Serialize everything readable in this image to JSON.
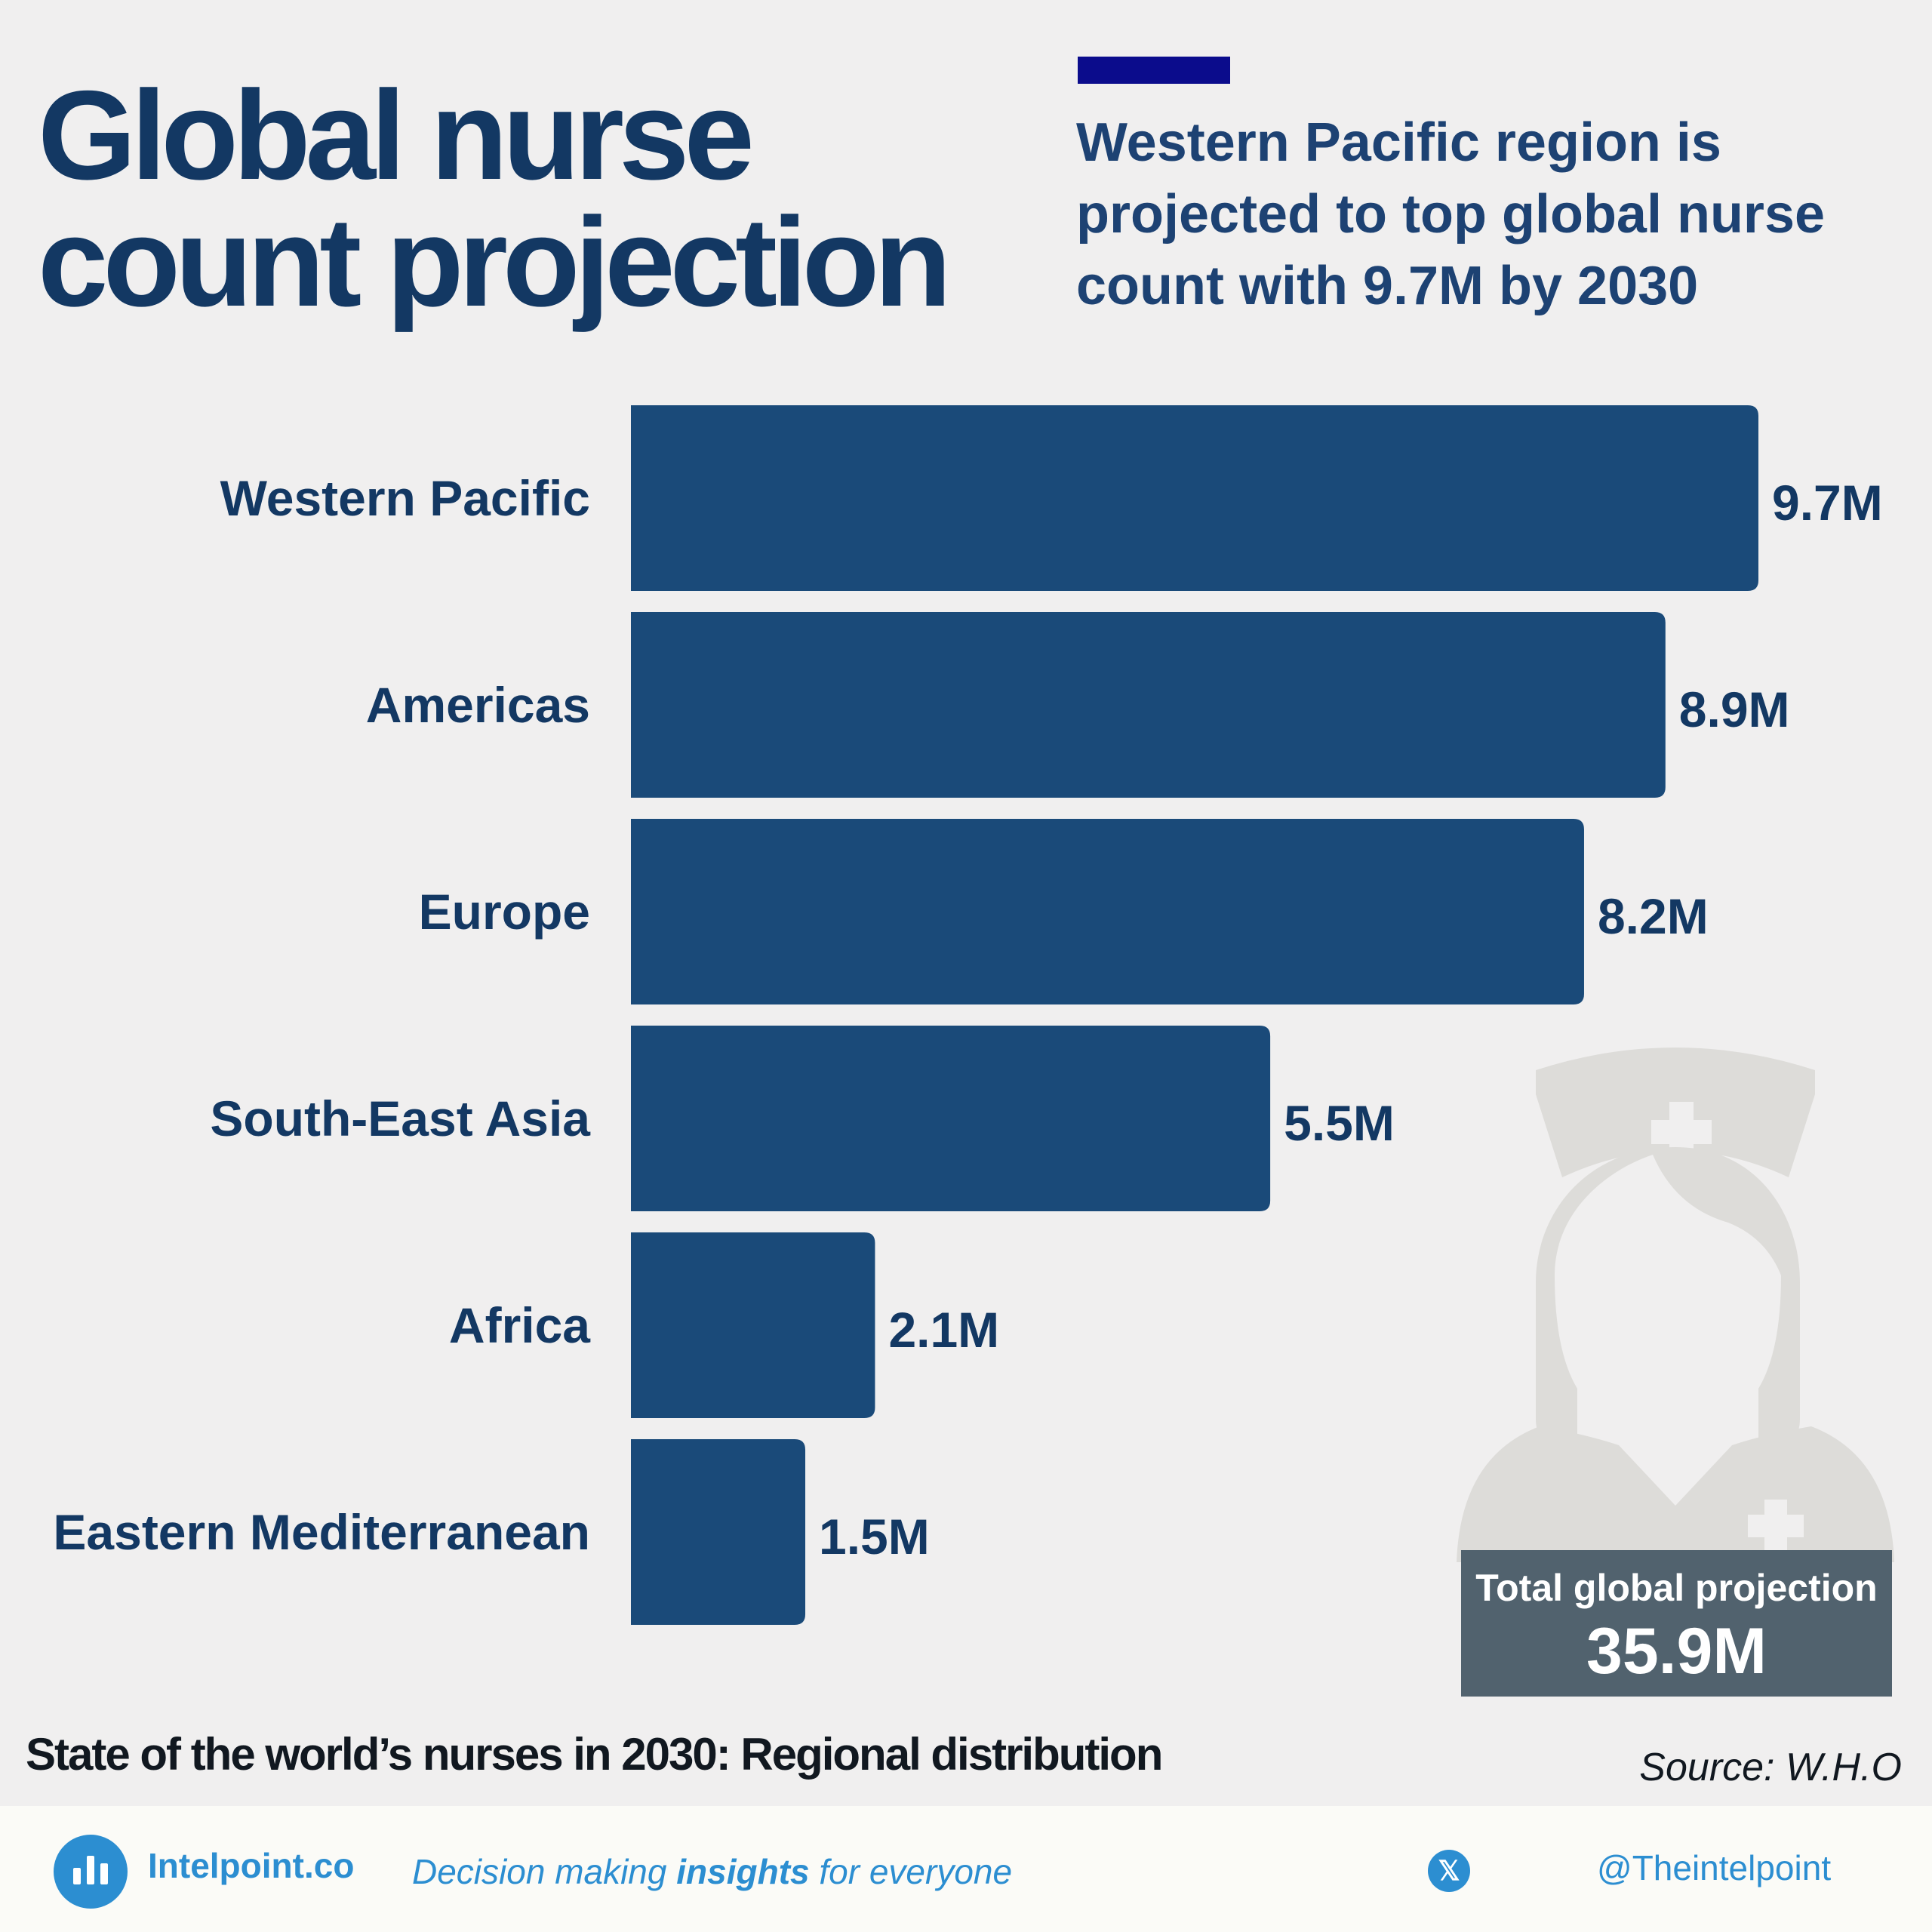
{
  "header": {
    "title_lines": [
      "Global nurse",
      "count projection"
    ],
    "subtitle_lines": [
      "Western Pacific region is",
      "projected to top global nurse",
      "count with 9.7M by 2030"
    ],
    "accent_color": "#0b0c8c"
  },
  "chart_data": {
    "type": "bar",
    "orientation": "horizontal",
    "categories": [
      "Western Pacific",
      "Americas",
      "Europe",
      "South-East Asia",
      "Africa",
      "Eastern Mediterranean"
    ],
    "values": [
      9.7,
      8.9,
      8.2,
      5.5,
      2.1,
      1.5
    ],
    "value_labels": [
      "9.7M",
      "8.9M",
      "8.2M",
      "5.5M",
      "2.1M",
      "1.5M"
    ],
    "unit": "M",
    "xlim": [
      0,
      9.7
    ],
    "bar_color": "#1a4a79",
    "grid": false,
    "legend": "none"
  },
  "total": {
    "label": "Total global projection",
    "value": "35.9M"
  },
  "caption": "State of the world’s nurses in 2030: Regional distribution",
  "source": "Source: W.H.O",
  "footer": {
    "brand": "Intelpoint.co",
    "tagline_pre": "Decision making ",
    "tagline_bold": "insights",
    "tagline_post": " for everyone",
    "x_icon_glyph": "𝕏",
    "handle": "@Theintelpoint",
    "brand_color": "#2c8ed1"
  }
}
